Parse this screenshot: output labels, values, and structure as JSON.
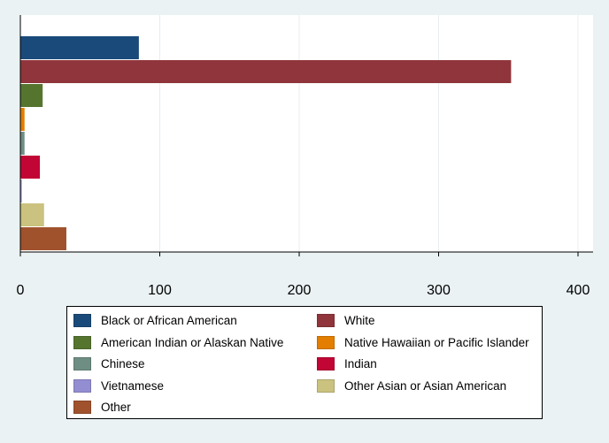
{
  "chart_data": {
    "type": "bar",
    "orientation": "horizontal",
    "xlim": [
      0,
      400
    ],
    "xticks": [
      0,
      100,
      200,
      300,
      400
    ],
    "xlabel": "",
    "ylabel": "",
    "title": "",
    "grid": "vertical",
    "legend_position": "bottom",
    "series": [
      {
        "name": "Black or African American",
        "value": 85,
        "color": "#1a4a7a"
      },
      {
        "name": "White",
        "value": 352,
        "color": "#90353b"
      },
      {
        "name": "American Indian or Alaskan Native",
        "value": 16,
        "color": "#55752f"
      },
      {
        "name": "Native Hawaiian or Pacific Islander",
        "value": 3,
        "color": "#e37e00"
      },
      {
        "name": "Chinese",
        "value": 3,
        "color": "#6e8e84"
      },
      {
        "name": "Indian",
        "value": 14,
        "color": "#c10534"
      },
      {
        "name": "Vietnamese",
        "value": 1,
        "color": "#938dd2"
      },
      {
        "name": "Other Asian or Asian American",
        "value": 17,
        "color": "#cac27e"
      },
      {
        "name": "Other",
        "value": 33,
        "color": "#a0522d"
      }
    ]
  }
}
